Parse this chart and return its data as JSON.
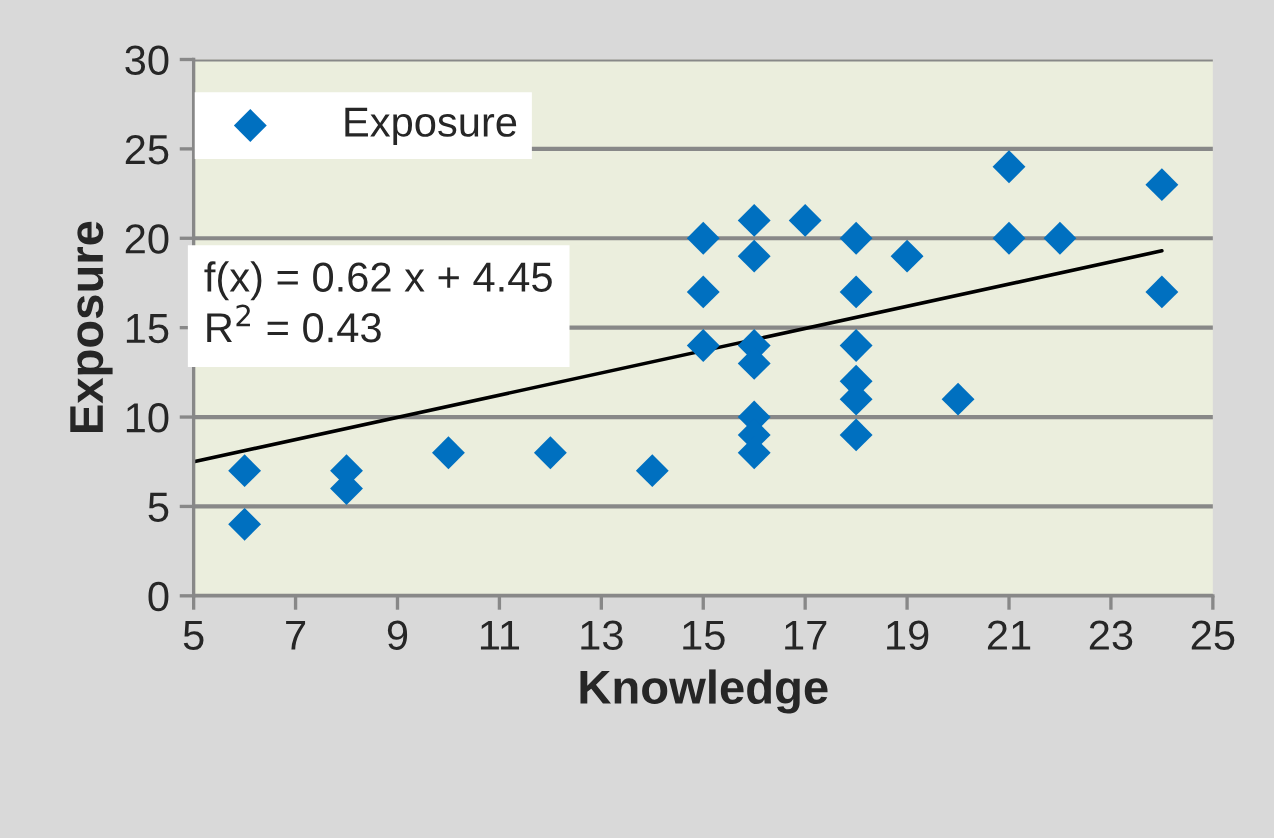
{
  "chart_data": {
    "type": "scatter",
    "xlabel": "Knowledge",
    "ylabel": "Exposure",
    "series": [
      {
        "name": "Exposure",
        "color": "#0070c0",
        "marker": "diamond",
        "x": [
          6,
          6,
          8,
          8,
          10,
          12,
          14,
          15,
          15,
          15,
          16,
          16,
          16,
          16,
          16,
          16,
          16,
          17,
          18,
          18,
          18,
          18,
          18,
          18,
          19,
          20,
          21,
          21,
          22,
          24,
          24
        ],
        "values": [
          7,
          4,
          7,
          6,
          8,
          8,
          7,
          20,
          17,
          14,
          21,
          19,
          14,
          13,
          10,
          9,
          8,
          21,
          20,
          17,
          14,
          12,
          11,
          9,
          19,
          11,
          24,
          20,
          20,
          23,
          17
        ]
      },
      {
        "type": "line",
        "color": "#000000",
        "marker": "none",
        "line_style": "solid",
        "x": [
          5,
          24
        ],
        "values": [
          7.5,
          19.3
        ]
      }
    ],
    "annotations": [
      "f(x) = 0.62 x + 4.45",
      "R$^{2}$ = 0.43"
    ],
    "xlim": [
      5,
      25
    ],
    "xticks": [
      5,
      7,
      9,
      11,
      13,
      15,
      17,
      19,
      21,
      23,
      25
    ],
    "ylim": [
      0,
      30
    ],
    "yticks": [
      0,
      5,
      10,
      15,
      20,
      25,
      30
    ],
    "grid": "y",
    "legend": "top left"
  }
}
